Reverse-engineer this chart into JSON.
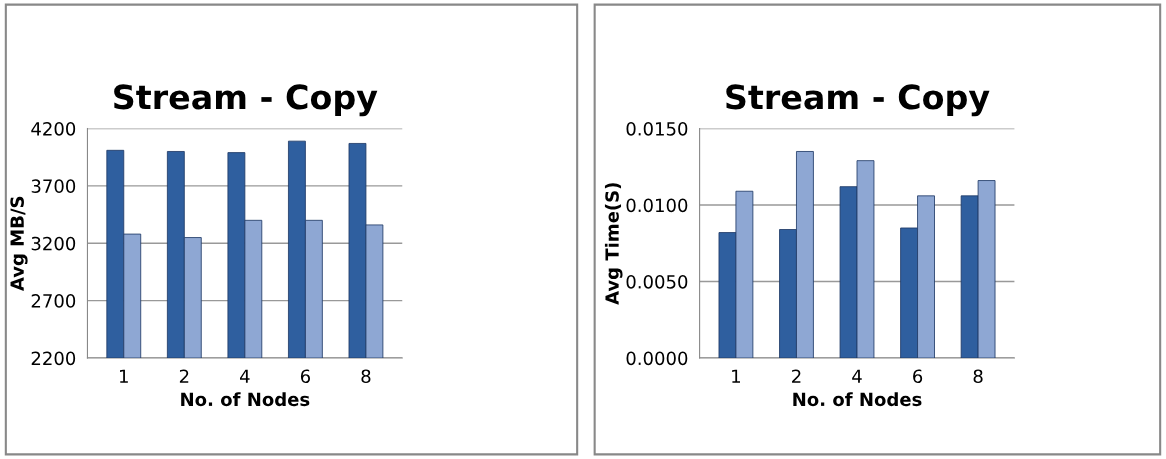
{
  "chart_data": [
    {
      "type": "bar",
      "title": "Stream - Copy",
      "xlabel": "No. of Nodes",
      "ylabel": "Avg MB/S",
      "categories": [
        "1",
        "2",
        "4",
        "6",
        "8"
      ],
      "series": [
        {
          "color": "#2f5f9f",
          "values": [
            4010,
            4000,
            3990,
            4090,
            4070
          ]
        },
        {
          "color": "#8ea7d3",
          "values": [
            3280,
            3250,
            3400,
            3400,
            3360
          ]
        }
      ],
      "ylim": [
        2200,
        4200
      ],
      "yticks": [
        2200,
        2700,
        3200,
        3700,
        4200
      ],
      "grid": "y"
    },
    {
      "type": "bar",
      "title": "Stream - Copy",
      "xlabel": "No. of Nodes",
      "ylabel": "Avg Time(S)",
      "categories": [
        "1",
        "2",
        "4",
        "6",
        "8"
      ],
      "series": [
        {
          "color": "#2f5f9f",
          "values": [
            0.0082,
            0.0084,
            0.0112,
            0.0085,
            0.0106
          ]
        },
        {
          "color": "#8ea7d3",
          "values": [
            0.0109,
            0.0135,
            0.0129,
            0.0106,
            0.0116
          ]
        }
      ],
      "ylim": [
        0,
        0.015
      ],
      "yticks": [
        {
          "value": 0,
          "label": "0.0000"
        },
        {
          "value": 0.005,
          "label": "0.0050"
        },
        {
          "value": 0.01,
          "label": "0.0100"
        },
        {
          "value": 0.015,
          "label": "0.0150"
        }
      ],
      "grid": "y"
    }
  ]
}
